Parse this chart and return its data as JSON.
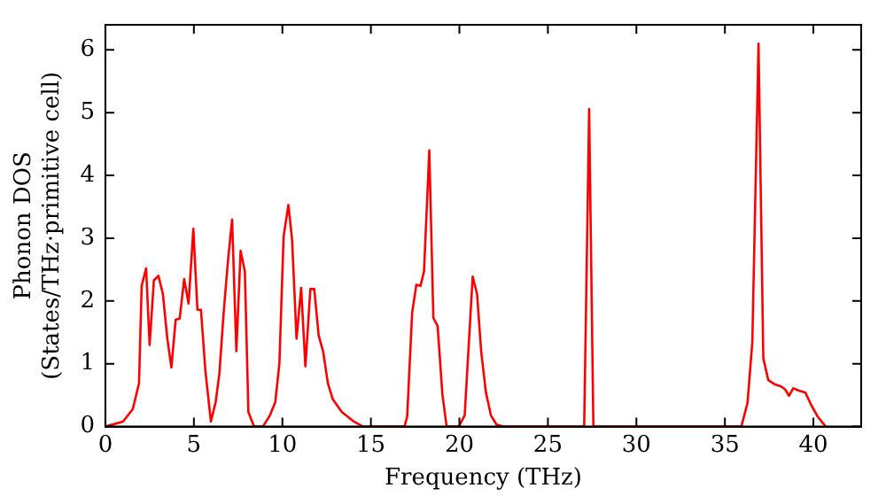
{
  "chart_data": {
    "type": "line",
    "xlabel": "Frequency (THz)",
    "ylabel": "Phonon DOS\n(States/THz·primitive cell)",
    "x": [
      0,
      1.0,
      1.55,
      1.9,
      2.05,
      2.3,
      2.5,
      2.74,
      3.0,
      3.25,
      3.5,
      3.73,
      3.97,
      4.2,
      4.45,
      4.7,
      4.97,
      5.2,
      5.4,
      5.65,
      5.96,
      6.23,
      6.44,
      6.68,
      6.92,
      7.16,
      7.4,
      7.64,
      7.88,
      8.08,
      8.4,
      8.9,
      9.3,
      9.6,
      9.83,
      10.07,
      10.34,
      10.55,
      10.8,
      11.06,
      11.3,
      11.58,
      11.8,
      12.05,
      12.3,
      12.57,
      12.84,
      13.36,
      14.04,
      14.55,
      16.9,
      17.05,
      17.33,
      17.57,
      17.8,
      18.0,
      18.3,
      18.53,
      18.77,
      19.04,
      19.28,
      19.97,
      20.3,
      20.75,
      21.0,
      21.23,
      21.5,
      21.78,
      22.1,
      22.5,
      27.05,
      27.33,
      27.57,
      35.93,
      36.28,
      36.55,
      36.9,
      37.17,
      37.45,
      37.83,
      38.17,
      38.41,
      38.62,
      38.86,
      39.21,
      39.55,
      39.9,
      40.24,
      40.69
    ],
    "series": [
      {
        "color": "#ff0000",
        "values": [
          0,
          0.08,
          0.28,
          0.69,
          2.24,
          2.52,
          1.3,
          2.33,
          2.4,
          2.11,
          1.4,
          0.94,
          1.7,
          1.72,
          2.35,
          1.96,
          3.15,
          1.86,
          1.86,
          0.89,
          0.08,
          0.39,
          0.84,
          1.81,
          2.62,
          3.3,
          1.2,
          2.8,
          2.47,
          0.23,
          0,
          0,
          0.18,
          0.39,
          1.0,
          3.03,
          3.53,
          2.97,
          1.4,
          2.21,
          0.96,
          2.19,
          2.19,
          1.45,
          1.2,
          0.69,
          0.44,
          0.23,
          0.08,
          0,
          0,
          0.16,
          1.81,
          2.26,
          2.24,
          2.47,
          4.4,
          1.73,
          1.6,
          0.51,
          0,
          0,
          0.18,
          2.39,
          2.11,
          1.2,
          0.54,
          0.18,
          0.03,
          0,
          0,
          5.06,
          0,
          0,
          0.38,
          1.35,
          6.1,
          1.09,
          0.74,
          0.67,
          0.64,
          0.59,
          0.49,
          0.61,
          0.57,
          0.54,
          0.33,
          0.16,
          0
        ]
      }
    ],
    "xlim": [
      0,
      42.7
    ],
    "ylim": [
      0,
      6.4
    ],
    "xticks": [
      0,
      5,
      10,
      15,
      20,
      25,
      30,
      35,
      40
    ],
    "yticks": [
      0,
      1,
      2,
      3,
      4,
      5,
      6
    ],
    "grid": false,
    "legend": false,
    "marker": "none",
    "line_style": "solid"
  }
}
